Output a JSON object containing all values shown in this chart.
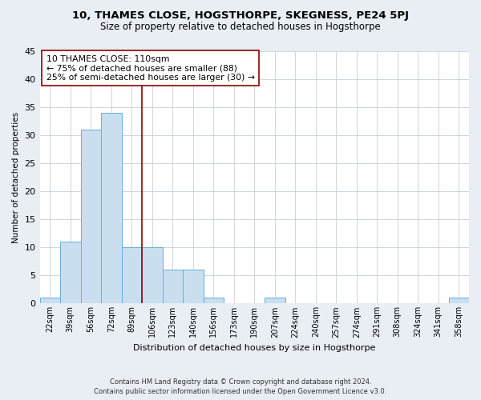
{
  "title": "10, THAMES CLOSE, HOGSTHORPE, SKEGNESS, PE24 5PJ",
  "subtitle": "Size of property relative to detached houses in Hogsthorpe",
  "xlabel": "Distribution of detached houses by size in Hogsthorpe",
  "ylabel": "Number of detached properties",
  "bar_color": "#c9dff0",
  "bar_edge_color": "#6aaed6",
  "categories": [
    "22sqm",
    "39sqm",
    "56sqm",
    "72sqm",
    "89sqm",
    "106sqm",
    "123sqm",
    "140sqm",
    "156sqm",
    "173sqm",
    "190sqm",
    "207sqm",
    "224sqm",
    "240sqm",
    "257sqm",
    "274sqm",
    "291sqm",
    "308sqm",
    "324sqm",
    "341sqm",
    "358sqm"
  ],
  "values": [
    1,
    11,
    31,
    34,
    10,
    10,
    6,
    6,
    1,
    0,
    0,
    1,
    0,
    0,
    0,
    0,
    0,
    0,
    0,
    0,
    1
  ],
  "ylim": [
    0,
    45
  ],
  "yticks": [
    0,
    5,
    10,
    15,
    20,
    25,
    30,
    35,
    40,
    45
  ],
  "property_label": "10 THAMES CLOSE: 110sqm",
  "annotation_line1": "← 75% of detached houses are smaller (88)",
  "annotation_line2": "25% of semi-detached houses are larger (30) →",
  "vline_bin_index": 4.5,
  "footer_line1": "Contains HM Land Registry data © Crown copyright and database right 2024.",
  "footer_line2": "Contains public sector information licensed under the Open Government Licence v3.0.",
  "background_color": "#e8eef4",
  "plot_background_color": "#ffffff",
  "grid_color": "#c8d0d8"
}
